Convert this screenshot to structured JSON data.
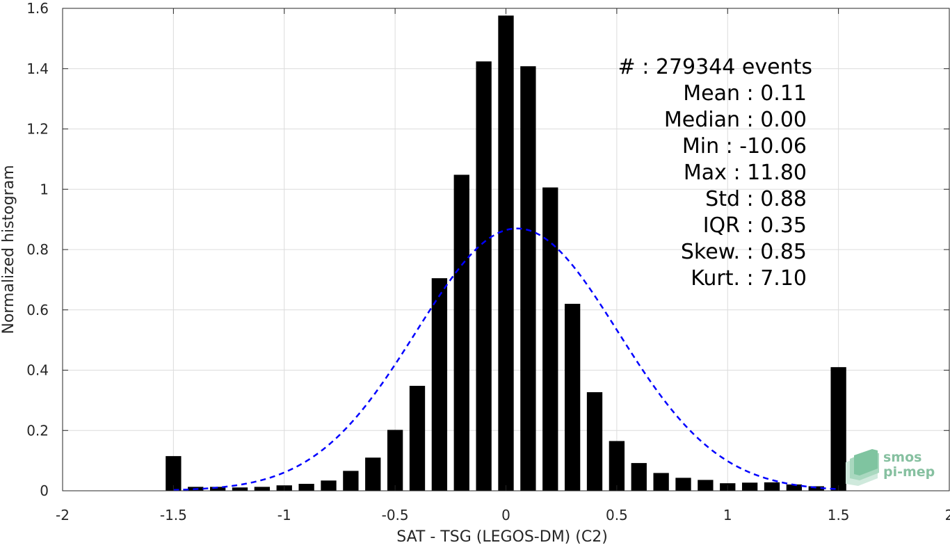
{
  "chart_data": {
    "type": "bar",
    "xlabel": "SAT - TSG (LEGOS-DM) (C2)",
    "ylabel": "Normalized histogram",
    "xlim": [
      -2,
      2
    ],
    "ylim": [
      0,
      1.6
    ],
    "xticks": [
      -2,
      -1.5,
      -1,
      -0.5,
      0,
      0.5,
      1,
      1.5,
      2
    ],
    "xtick_labels": [
      "-2",
      "-1.5",
      "-1",
      "-0.5",
      "0",
      "0.5",
      "1",
      "1.5",
      "2"
    ],
    "yticks": [
      0,
      0.2,
      0.4,
      0.6,
      0.8,
      1,
      1.2,
      1.4,
      1.6
    ],
    "ytick_labels": [
      "0",
      "0.2",
      "0.4",
      "0.6",
      "0.8",
      "1",
      "1.2",
      "1.4",
      "1.6"
    ],
    "grid": true,
    "bar_width": 0.07,
    "x": [
      -1.5,
      -1.4,
      -1.3,
      -1.2,
      -1.1,
      -1.0,
      -0.9,
      -0.8,
      -0.7,
      -0.6,
      -0.5,
      -0.4,
      -0.3,
      -0.2,
      -0.1,
      0.0,
      0.1,
      0.2,
      0.3,
      0.4,
      0.5,
      0.6,
      0.7,
      0.8,
      0.9,
      1.0,
      1.1,
      1.2,
      1.3,
      1.4,
      1.5
    ],
    "values": [
      0.115,
      0.013,
      0.013,
      0.011,
      0.013,
      0.018,
      0.023,
      0.034,
      0.066,
      0.11,
      0.202,
      0.348,
      0.705,
      1.048,
      1.424,
      1.576,
      1.408,
      1.006,
      0.62,
      0.327,
      0.165,
      0.092,
      0.059,
      0.043,
      0.036,
      0.025,
      0.027,
      0.028,
      0.021,
      0.015,
      0.41
    ],
    "bar_color": "#000000",
    "fit_curve": {
      "style": "dashed",
      "color": "#0000ff",
      "mean": 0.05,
      "std": 0.455,
      "peak": 0.87,
      "x_range": [
        -1.5,
        1.5
      ]
    },
    "annotations": [
      "#  : 279344 events",
      "Mean : 0.11",
      "Median : 0.00",
      "Min : -10.06",
      "Max : 11.80",
      "Std : 0.88",
      "IQR : 0.35",
      "Skew. : 0.85",
      "Kurt. : 7.10"
    ]
  },
  "logo": {
    "name": "smos-pi-mep-logo",
    "line1": "smos",
    "line2": "pi-mep"
  }
}
